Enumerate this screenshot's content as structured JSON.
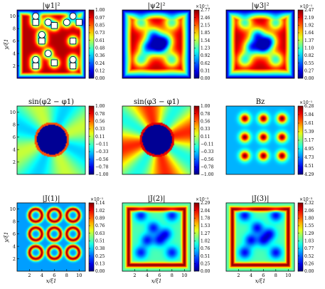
{
  "figure": {
    "panels": [
      {
        "title": "|ψ1|²",
        "scale_label": "",
        "colorbar_ticks": [
          "1.00",
          "0.97",
          "0.85",
          "0.73",
          "0.61",
          "0.48",
          "0.36",
          "0.24",
          "0.12",
          "0.00"
        ],
        "ylabel": "y/ξ1",
        "yticks": [
          "2",
          "4",
          "6",
          "8",
          "10"
        ],
        "field": "psi1",
        "markers": {
          "circles": [
            [
              3,
              10
            ],
            [
              9,
              10
            ],
            [
              5,
              9
            ],
            [
              8,
              9
            ],
            [
              4,
              7
            ],
            [
              3,
              3
            ],
            [
              9,
              3
            ],
            [
              5,
              4
            ]
          ],
          "squares": [
            [
              3,
              9
            ],
            [
              10,
              9
            ],
            [
              6,
              8.5
            ],
            [
              4,
              6
            ],
            [
              9,
              6
            ],
            [
              3,
              2
            ],
            [
              6,
              2.5
            ],
            [
              9,
              2
            ]
          ]
        }
      },
      {
        "title": "|ψ2|²",
        "scale_label": "×10⁻¹",
        "colorbar_ticks": [
          "2.77",
          "2.46",
          "2.15",
          "1.85",
          "1.54",
          "1.23",
          "0.92",
          "0.62",
          "0.31",
          "0.00"
        ],
        "ylabel": "",
        "yticks": [],
        "field": "psi2"
      },
      {
        "title": "|ψ3|²",
        "scale_label": "×10⁻¹",
        "colorbar_ticks": [
          "2.47",
          "2.19",
          "1.92",
          "1.64",
          "1.37",
          "1.10",
          "0.82",
          "0.55",
          "0.27",
          "0.00"
        ],
        "ylabel": "",
        "yticks": [],
        "field": "psi3"
      },
      {
        "title": "sin(φ2 − φ1)",
        "scale_label": "",
        "colorbar_ticks": [
          "1.00",
          "0.78",
          "0.56",
          "0.33",
          "0.11",
          "−0.11",
          "−0.33",
          "−0.56",
          "−0.78",
          "−1.00"
        ],
        "ylabel": "",
        "yticks": [
          "2",
          "4",
          "6",
          "8",
          "10"
        ],
        "field": "sin21"
      },
      {
        "title": "sin(φ3 − φ1)",
        "scale_label": "",
        "colorbar_ticks": [
          "1.00",
          "0.78",
          "0.56",
          "0.33",
          "0.11",
          "−0.11",
          "−0.33",
          "−0.56",
          "−0.78",
          "−1.00"
        ],
        "ylabel": "",
        "yticks": [],
        "field": "sin31"
      },
      {
        "title": "Bz",
        "scale_label": "×10⁻¹",
        "colorbar_ticks": [
          "6.28",
          "5.84",
          "5.61",
          "5.39",
          "5.17",
          "4.95",
          "4.73",
          "4.51",
          "4.29"
        ],
        "ylabel": "",
        "yticks": [],
        "field": "bz"
      },
      {
        "title": "|J(1)|",
        "scale_label": "×10⁻¹",
        "colorbar_ticks": [
          "1.14",
          "1.02",
          "0.89",
          "0.76",
          "0.63",
          "0.51",
          "0.38",
          "0.25",
          "0.13",
          "0.00"
        ],
        "ylabel": "y/ξ1",
        "yticks": [
          "2",
          "4",
          "6",
          "8",
          "10"
        ],
        "xlabel": "x/ξ1",
        "xticks": [
          "2",
          "4",
          "6",
          "8",
          "10"
        ],
        "field": "j1"
      },
      {
        "title": "|J(2)|",
        "scale_label": "×10⁻³",
        "colorbar_ticks": [
          "2.29",
          "2.04",
          "1.78",
          "1.53",
          "1.27",
          "1.02",
          "0.76",
          "0.51",
          "0.25",
          "0.00"
        ],
        "ylabel": "",
        "yticks": [],
        "xlabel": "x/ξ1",
        "xticks": [
          "2",
          "4",
          "6",
          "8",
          "10"
        ],
        "field": "j2"
      },
      {
        "title": "|J(3)|",
        "scale_label": "×10⁻³",
        "colorbar_ticks": [
          "2.32",
          "2.06",
          "1.80",
          "1.55",
          "1.29",
          "1.03",
          "0.77",
          "0.52",
          "0.26",
          "0.00"
        ],
        "ylabel": "",
        "yticks": [],
        "xlabel": "x/ξ1",
        "xticks": [
          "2",
          "4",
          "6",
          "8",
          "10"
        ],
        "field": "j3"
      }
    ]
  },
  "chart_data": [
    {
      "type": "heatmap",
      "title": "|ψ1|²",
      "xlabel": "",
      "ylabel": "y/ξ1",
      "xlim": [
        0,
        11
      ],
      "ylim": [
        0,
        11
      ],
      "colorbar_range": [
        0.0,
        1.0
      ],
      "colormap": "jet",
      "vortex_cores": [
        [
          3,
          10
        ],
        [
          9,
          10
        ],
        [
          5,
          9
        ],
        [
          8,
          9
        ],
        [
          4,
          7
        ],
        [
          3,
          3
        ],
        [
          9,
          3
        ],
        [
          5,
          4
        ],
        [
          3,
          9
        ],
        [
          10,
          9
        ],
        [
          6,
          8.5
        ],
        [
          4,
          6
        ],
        [
          9,
          6
        ],
        [
          3,
          2
        ],
        [
          6,
          2.5
        ],
        [
          9,
          2
        ]
      ]
    },
    {
      "type": "heatmap",
      "title": "|ψ2|²",
      "xlim": [
        0,
        11
      ],
      "ylim": [
        0,
        11
      ],
      "colorbar_range": [
        0.0,
        2.77
      ],
      "colorbar_scale": "×10⁻¹",
      "colormap": "jet"
    },
    {
      "type": "heatmap",
      "title": "|ψ3|²",
      "xlim": [
        0,
        11
      ],
      "ylim": [
        0,
        11
      ],
      "colorbar_range": [
        0.0,
        2.47
      ],
      "colorbar_scale": "×10⁻¹",
      "colormap": "jet"
    },
    {
      "type": "heatmap",
      "title": "sin(φ2 − φ1)",
      "xlim": [
        0,
        11
      ],
      "ylim": [
        0,
        11
      ],
      "colorbar_range": [
        -1.0,
        1.0
      ],
      "colormap": "jet"
    },
    {
      "type": "heatmap",
      "title": "sin(φ3 − φ1)",
      "xlim": [
        0,
        11
      ],
      "ylim": [
        0,
        11
      ],
      "colorbar_range": [
        -1.0,
        1.0
      ],
      "colormap": "jet"
    },
    {
      "type": "heatmap",
      "title": "Bz",
      "xlim": [
        0,
        11
      ],
      "ylim": [
        0,
        11
      ],
      "colorbar_range": [
        4.29,
        6.28
      ],
      "colorbar_scale": "×10⁻¹",
      "colormap": "jet",
      "peaks": [
        [
          3,
          9
        ],
        [
          6,
          9
        ],
        [
          9,
          9
        ],
        [
          3,
          6
        ],
        [
          6,
          6
        ],
        [
          9,
          6
        ],
        [
          3,
          3
        ],
        [
          6,
          3
        ],
        [
          9,
          3
        ]
      ]
    },
    {
      "type": "heatmap",
      "title": "|J(1)|",
      "xlabel": "x/ξ1",
      "ylabel": "y/ξ1",
      "xlim": [
        0,
        11
      ],
      "ylim": [
        0,
        11
      ],
      "colorbar_range": [
        0.0,
        1.14
      ],
      "colorbar_scale": "×10⁻¹",
      "colormap": "jet"
    },
    {
      "type": "heatmap",
      "title": "|J(2)|",
      "xlabel": "x/ξ1",
      "xlim": [
        0,
        11
      ],
      "ylim": [
        0,
        11
      ],
      "colorbar_range": [
        0.0,
        2.29
      ],
      "colorbar_scale": "×10⁻³",
      "colormap": "jet"
    },
    {
      "type": "heatmap",
      "title": "|J(3)|",
      "xlabel": "x/ξ1",
      "xlim": [
        0,
        11
      ],
      "ylim": [
        0,
        11
      ],
      "colorbar_range": [
        0.0,
        2.32
      ],
      "colorbar_scale": "×10⁻³",
      "colormap": "jet"
    }
  ]
}
